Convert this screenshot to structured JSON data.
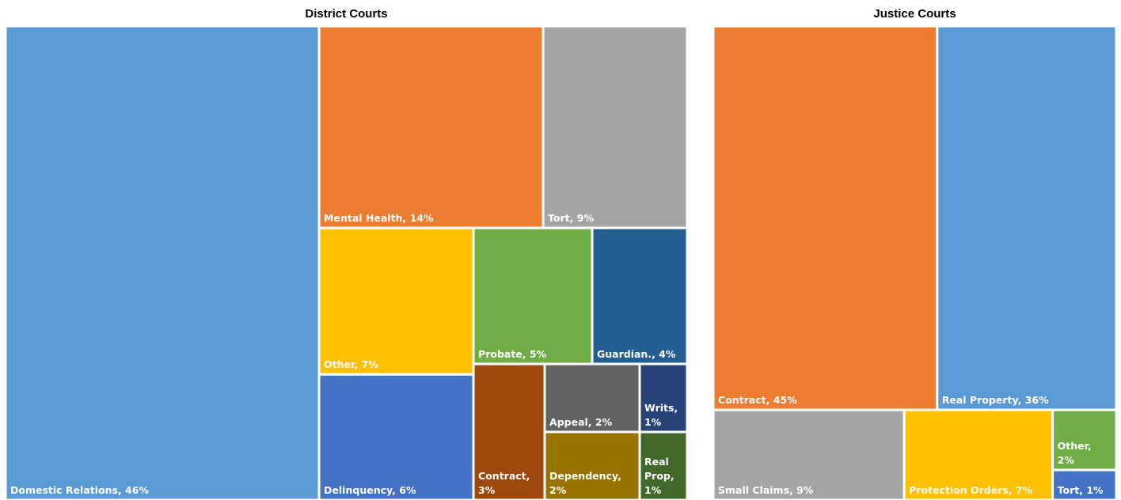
{
  "chart_data": [
    {
      "type": "treemap",
      "title": "District Courts",
      "value_labels": [
        "Domestic Relations, 46%",
        "Mental Health, 14%",
        "Tort, 9%",
        "Other, 7%",
        "Delinquency, 6%",
        "Probate, 5%",
        "Guardian., 4%",
        "Contract, 3%",
        "Appeal, 2%",
        "Dependency, 2%",
        "Writs, 1%",
        "Real Prop, 1%"
      ],
      "values": [
        46,
        14,
        9,
        7,
        6,
        5,
        4,
        3,
        2,
        2,
        1,
        1
      ],
      "colors": [
        "#5b9bd5",
        "#ed7d31",
        "#a5a5a5",
        "#ffc000",
        "#4472c4",
        "#70ad47",
        "#255e91",
        "#9e480e",
        "#636363",
        "#997300",
        "#264478",
        "#43682b"
      ]
    },
    {
      "type": "treemap",
      "title": "Justice Courts",
      "value_labels": [
        "Contract, 45%",
        "Real Property, 36%",
        "Small Claims, 9%",
        "Protection Orders, 7%",
        "Other, 2%",
        "Tort, 1%"
      ],
      "values": [
        45,
        36,
        9,
        7,
        2,
        1
      ],
      "colors": [
        "#ed7d31",
        "#5b9bd5",
        "#a5a5a5",
        "#ffc000",
        "#70ad47",
        "#4472c4"
      ]
    }
  ]
}
